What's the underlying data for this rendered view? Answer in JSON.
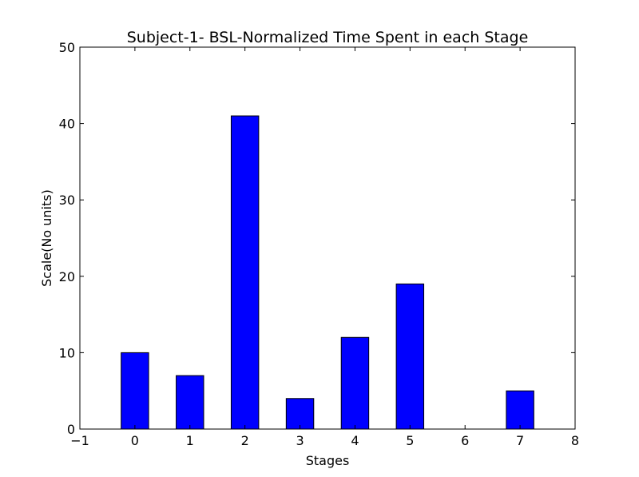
{
  "chart_data": {
    "type": "bar",
    "title": "Subject-1- BSL-Normalized Time Spent in each Stage",
    "xlabel": "Stages",
    "ylabel": "Scale(No units)",
    "xlim": [
      -1,
      8
    ],
    "ylim": [
      0,
      50
    ],
    "xticks": [
      -1,
      0,
      1,
      2,
      3,
      4,
      5,
      6,
      7,
      8
    ],
    "xtick_labels": [
      "−1",
      "0",
      "1",
      "2",
      "3",
      "4",
      "5",
      "6",
      "7",
      "8"
    ],
    "yticks": [
      0,
      10,
      20,
      30,
      40,
      50
    ],
    "yticks_labels": [
      "0",
      "10",
      "20",
      "30",
      "40",
      "50"
    ],
    "categories": [
      0,
      1,
      2,
      3,
      4,
      5,
      6,
      7
    ],
    "values": [
      10,
      7,
      41,
      4,
      12,
      19,
      0,
      5
    ],
    "bar_width": 0.5,
    "bar_color": "#0000ff",
    "edge_color": "#000000",
    "grid": false
  }
}
